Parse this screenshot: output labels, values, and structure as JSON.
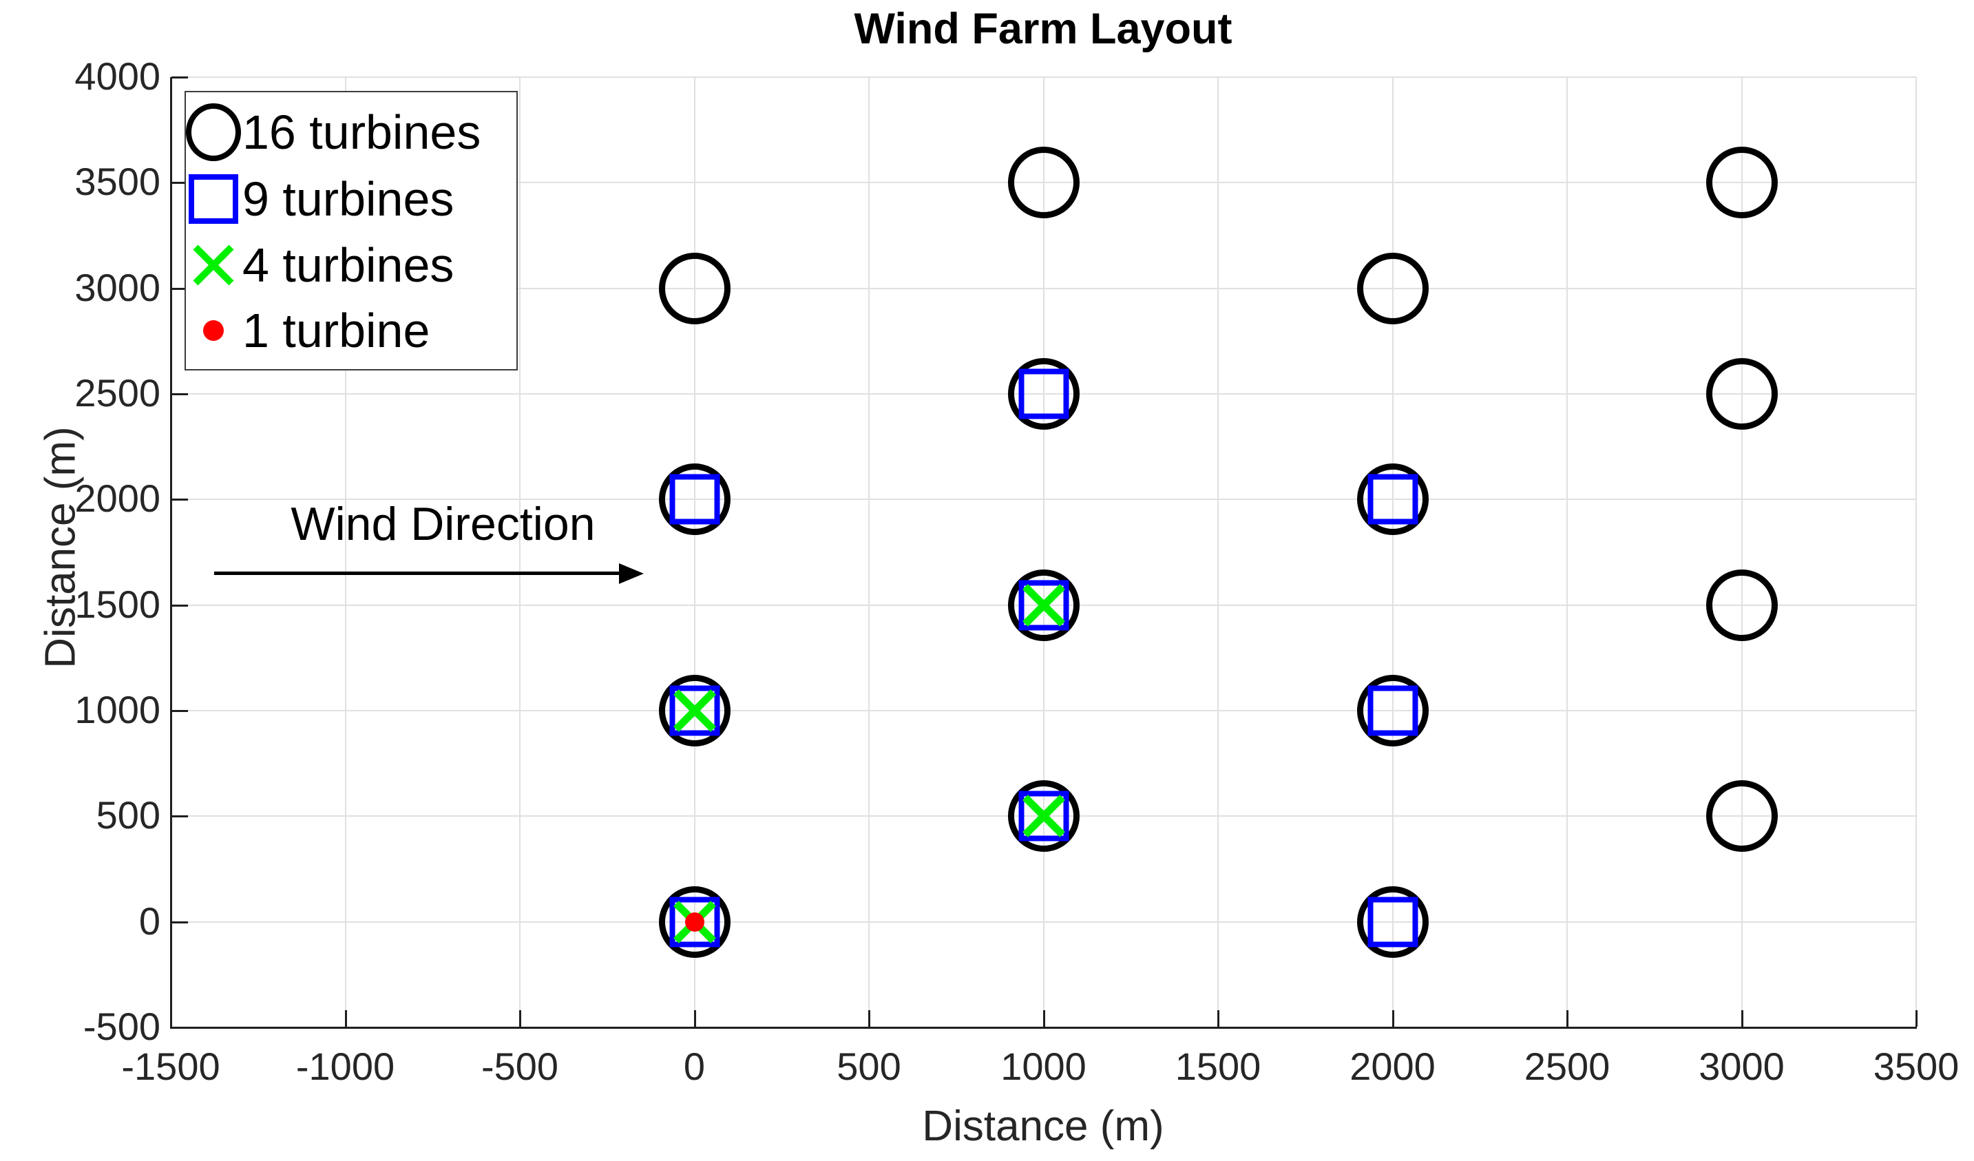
{
  "chart_data": {
    "type": "scatter",
    "title": "Wind Farm Layout",
    "xlabel": "Distance (m)",
    "ylabel": "Distance (m)",
    "xlim": [
      -1500,
      3500
    ],
    "ylim": [
      -500,
      4000
    ],
    "x_ticks": [
      -1500,
      -1000,
      -500,
      0,
      500,
      1000,
      1500,
      2000,
      2500,
      3000,
      3500
    ],
    "x_tick_labels": [
      "-1500",
      "-1000",
      "-500",
      "0",
      "500",
      "1000",
      "1500",
      "2000",
      "2500",
      "3000",
      "3500"
    ],
    "y_ticks": [
      -500,
      0,
      500,
      1000,
      1500,
      2000,
      2500,
      3000,
      3500,
      4000
    ],
    "y_tick_labels": [
      "-500",
      "0",
      "500",
      "1000",
      "1500",
      "2000",
      "2500",
      "3000",
      "3500",
      "4000"
    ],
    "grid": true,
    "legend_position": "top-left-inside",
    "series": [
      {
        "name": "16 turbines",
        "marker": "circle",
        "color": "#000000",
        "points": [
          [
            0,
            0
          ],
          [
            0,
            1000
          ],
          [
            0,
            2000
          ],
          [
            0,
            3000
          ],
          [
            1000,
            500
          ],
          [
            1000,
            1500
          ],
          [
            1000,
            2500
          ],
          [
            1000,
            3500
          ],
          [
            2000,
            0
          ],
          [
            2000,
            1000
          ],
          [
            2000,
            2000
          ],
          [
            2000,
            3000
          ],
          [
            3000,
            500
          ],
          [
            3000,
            1500
          ],
          [
            3000,
            2500
          ],
          [
            3000,
            3500
          ]
        ]
      },
      {
        "name": "9 turbines",
        "marker": "square",
        "color": "#0000FF",
        "points": [
          [
            0,
            0
          ],
          [
            0,
            1000
          ],
          [
            0,
            2000
          ],
          [
            1000,
            500
          ],
          [
            1000,
            1500
          ],
          [
            1000,
            2500
          ],
          [
            2000,
            0
          ],
          [
            2000,
            1000
          ],
          [
            2000,
            2000
          ]
        ]
      },
      {
        "name": "4 turbines",
        "marker": "x",
        "color": "#00F000",
        "points": [
          [
            0,
            0
          ],
          [
            0,
            1000
          ],
          [
            1000,
            500
          ],
          [
            1000,
            1500
          ]
        ]
      },
      {
        "name": "1 turbine",
        "marker": "dot",
        "color": "#FF0000",
        "points": [
          [
            0,
            0
          ]
        ]
      }
    ],
    "annotation": {
      "text": "Wind Direction",
      "text_xy": [
        -720,
        1885
      ],
      "arrow_from": [
        -1375,
        1650
      ],
      "arrow_to": [
        -145,
        1650
      ]
    }
  },
  "colors": {
    "background": "#FFFFFF",
    "grid": "#E0E0E0",
    "axis": "#1F1F1F",
    "text": "#262626",
    "legend_border": "#3C3C3C",
    "marker_black": "#000000",
    "marker_blue": "#0000FF",
    "marker_green": "#00F000",
    "marker_red": "#FF0000"
  }
}
